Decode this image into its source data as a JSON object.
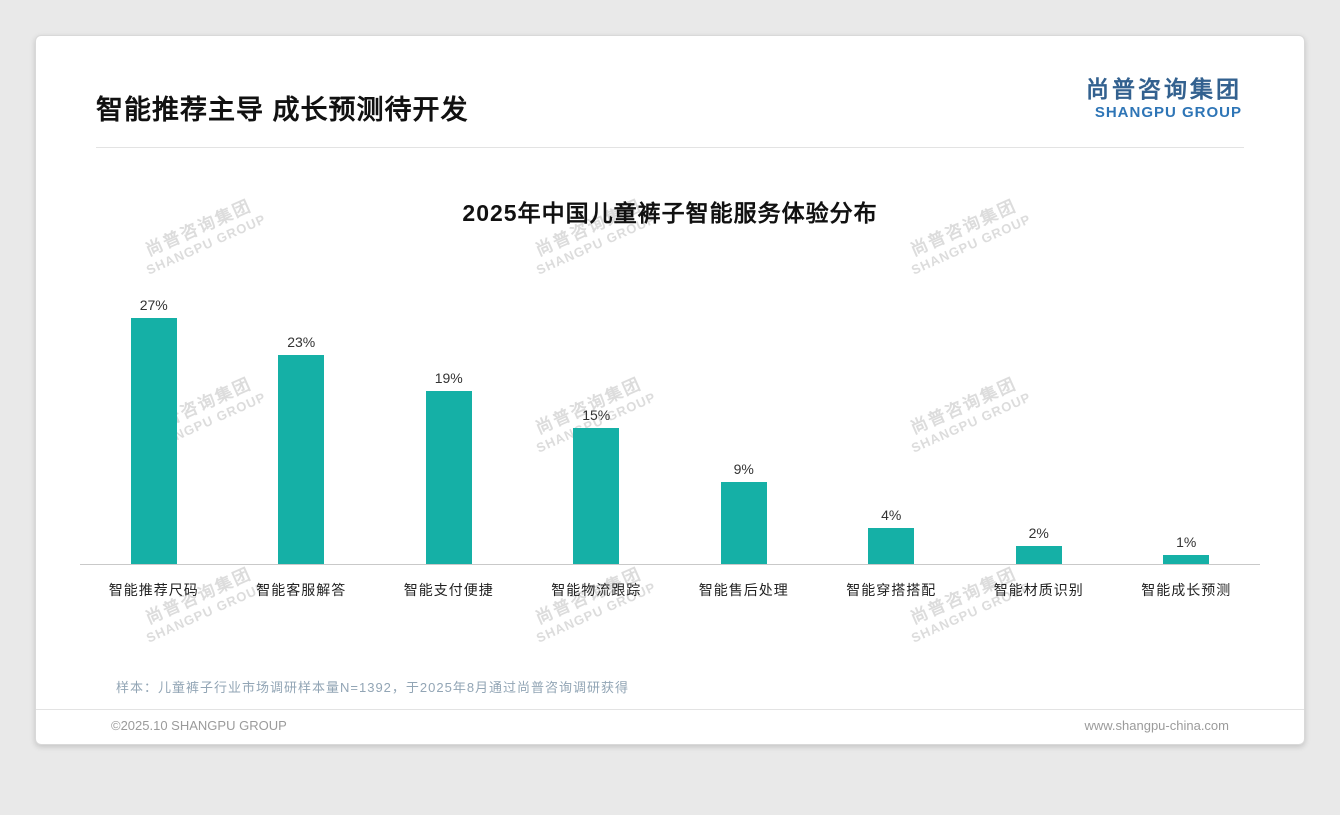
{
  "page": {
    "title": "智能推荐主导 成长预测待开发",
    "logo": {
      "cn": "尚普咨询集团",
      "en": "SHANGPU GROUP"
    },
    "watermark": {
      "cn": "尚普咨询集团",
      "en": "SHANGPU GROUP"
    },
    "note": "样本：儿童裤子行业市场调研样本量N=1392，于2025年8月通过尚普咨询调研获得",
    "footer": {
      "left": "©2025.10 SHANGPU GROUP",
      "right": "www.shangpu-china.com"
    }
  },
  "chart_data": {
    "type": "bar",
    "title": "2025年中国儿童裤子智能服务体验分布",
    "categories": [
      "智能推荐尺码",
      "智能客服解答",
      "智能支付便捷",
      "智能物流跟踪",
      "智能售后处理",
      "智能穿搭搭配",
      "智能材质识别",
      "智能成长预测"
    ],
    "values": [
      27,
      23,
      19,
      15,
      9,
      4,
      2,
      1
    ],
    "value_labels": [
      "27%",
      "23%",
      "19%",
      "15%",
      "9%",
      "4%",
      "2%",
      "1%"
    ],
    "unit": "%",
    "bar_color": "#15b0a6",
    "ylim": [
      0,
      30
    ],
    "grid": false,
    "legend": false
  }
}
